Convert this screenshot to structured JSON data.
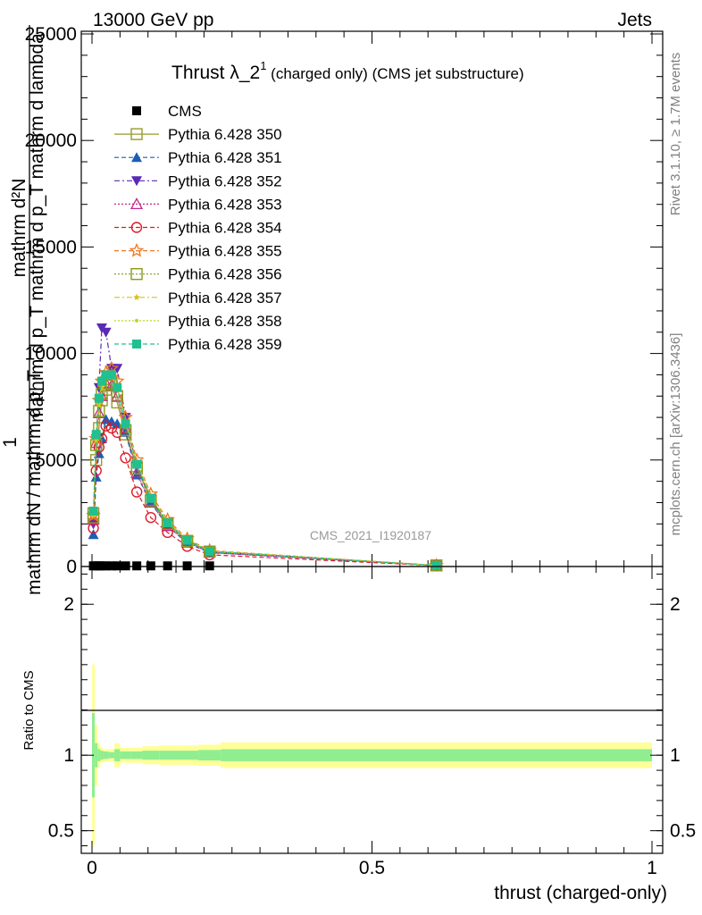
{
  "header": {
    "left": "13000 GeV pp",
    "right": "Jets"
  },
  "side_labels": {
    "rivet": "Rivet 3.1.10, ≥ 1.7M events",
    "mcplots": "mcplots.cern.ch [arXiv:1306.3436]"
  },
  "colors": {
    "cms": "#000000",
    "band_inner": "#90ee90",
    "band_outer": "#ffff99"
  },
  "chart_data": [
    {
      "type": "line",
      "title": "Thrust λ_2¹ (charged only) (CMS jet substructure)",
      "title_main": "Thrust λ_2",
      "title_sup": "1",
      "title_rest": " (charged only) (CMS jet substructure)",
      "watermark": "CMS_2021_I1920187",
      "ylabel_numerator": "mathrm d²N",
      "ylabel_one": "1",
      "ylabel_mid": "mathrm d p_T mathrm d p_T mathrm d lambda",
      "ylabel_denominator": "mathrm dN / mathrm d p_T",
      "xlim": [
        0,
        1
      ],
      "ylim": [
        0,
        25000
      ],
      "yticks": [
        0,
        5000,
        10000,
        15000,
        20000,
        25000
      ],
      "ytick_labels": [
        "0",
        "5000",
        "10000",
        "15000",
        "20000",
        "25000"
      ],
      "x": [
        0.0025,
        0.0075,
        0.0125,
        0.0175,
        0.025,
        0.035,
        0.045,
        0.06,
        0.08,
        0.105,
        0.135,
        0.17,
        0.21,
        0.615
      ],
      "series": [
        {
          "name": "CMS",
          "marker": "square-filled",
          "color": "#000000",
          "dash": "",
          "values": [
            30,
            30,
            30,
            30,
            30,
            30,
            30,
            30,
            30,
            30,
            30,
            30,
            30,
            0
          ]
        },
        {
          "name": "Pythia 6.428 350",
          "marker": "square-open",
          "color": "#9a9a2a",
          "dash": "",
          "values": [
            2500,
            5000,
            6500,
            7800,
            8300,
            8500,
            7700,
            6200,
            4700,
            3100,
            2000,
            1200,
            700,
            50
          ]
        },
        {
          "name": "Pythia 6.428 351",
          "marker": "triangle-up-filled",
          "color": "#1e5db5",
          "dash": "5,3",
          "values": [
            1500,
            4200,
            5300,
            6000,
            6900,
            6800,
            6700,
            6300,
            4300,
            3000,
            1900,
            1100,
            650,
            50
          ]
        },
        {
          "name": "Pythia 6.428 352",
          "marker": "triangle-down-filled",
          "color": "#5a2ab5",
          "dash": "6,3,2,3",
          "values": [
            2000,
            6000,
            8400,
            11200,
            11000,
            9300,
            9300,
            7000,
            4700,
            3200,
            2000,
            1200,
            700,
            50
          ]
        },
        {
          "name": "Pythia 6.428 353",
          "marker": "triangle-up-open",
          "color": "#c02a8a",
          "dash": "2,2",
          "values": [
            2200,
            5800,
            7200,
            8000,
            8600,
            8500,
            8000,
            6500,
            4400,
            3000,
            1900,
            1150,
            650,
            50
          ]
        },
        {
          "name": "Pythia 6.428 354",
          "marker": "circle-open",
          "color": "#dd1a2a",
          "dash": "5,3",
          "values": [
            1800,
            4500,
            5600,
            6000,
            6600,
            6500,
            6300,
            5100,
            3500,
            2300,
            1600,
            950,
            550,
            40
          ]
        },
        {
          "name": "Pythia 6.428 355",
          "marker": "star-open",
          "color": "#f07820",
          "dash": "5,3",
          "values": [
            2400,
            6000,
            7800,
            8700,
            9100,
            9300,
            8700,
            7000,
            5000,
            3400,
            2200,
            1300,
            750,
            50
          ]
        },
        {
          "name": "Pythia 6.428 356",
          "marker": "square-open",
          "color": "#8a9a1a",
          "dash": "2,2",
          "values": [
            2300,
            5700,
            7300,
            8100,
            8500,
            8600,
            8000,
            6400,
            4600,
            3100,
            2000,
            1200,
            700,
            50
          ]
        },
        {
          "name": "Pythia 6.428 357",
          "marker": "star-small",
          "color": "#d8c020",
          "dash": "6,3,2,3",
          "values": [
            2400,
            5900,
            7600,
            8400,
            8900,
            9000,
            8400,
            6700,
            4800,
            3300,
            2100,
            1250,
            720,
            50
          ]
        },
        {
          "name": "Pythia 6.428 358",
          "marker": "dot",
          "color": "#b8d820",
          "dash": "2,2",
          "values": [
            2500,
            6000,
            7700,
            8500,
            9000,
            9100,
            8500,
            6800,
            4900,
            3300,
            2100,
            1260,
            730,
            50
          ]
        },
        {
          "name": "Pythia 6.428 359",
          "marker": "square-filled",
          "color": "#20c090",
          "dash": "5,3",
          "values": [
            2600,
            6200,
            7900,
            8700,
            9000,
            9000,
            8400,
            6700,
            4800,
            3200,
            2050,
            1230,
            710,
            50
          ]
        }
      ]
    },
    {
      "type": "area",
      "ylabel": "Ratio to CMS",
      "xlabel": "thrust (charged-only)",
      "xlim": [
        0,
        1
      ],
      "ylim": [
        0.35,
        2.25
      ],
      "xticks": [
        0,
        0.5,
        1
      ],
      "xtick_labels": [
        "0",
        "0.5",
        "1"
      ],
      "yticks": [
        0.5,
        1,
        2
      ],
      "ytick_labels": [
        "0.5",
        "1",
        "2"
      ],
      "bin_edges": [
        0,
        0.005,
        0.01,
        0.015,
        0.02,
        0.03,
        0.04,
        0.05,
        0.07,
        0.09,
        0.12,
        0.15,
        0.19,
        0.23,
        1.0
      ],
      "inner_band": [
        0.28,
        0.08,
        0.04,
        0.03,
        0.025,
        0.02,
        0.04,
        0.025,
        0.025,
        0.03,
        0.03,
        0.03,
        0.035,
        0.04
      ],
      "outer_band": [
        0.6,
        0.2,
        0.08,
        0.05,
        0.04,
        0.04,
        0.08,
        0.05,
        0.05,
        0.06,
        0.065,
        0.065,
        0.07,
        0.085
      ]
    }
  ]
}
